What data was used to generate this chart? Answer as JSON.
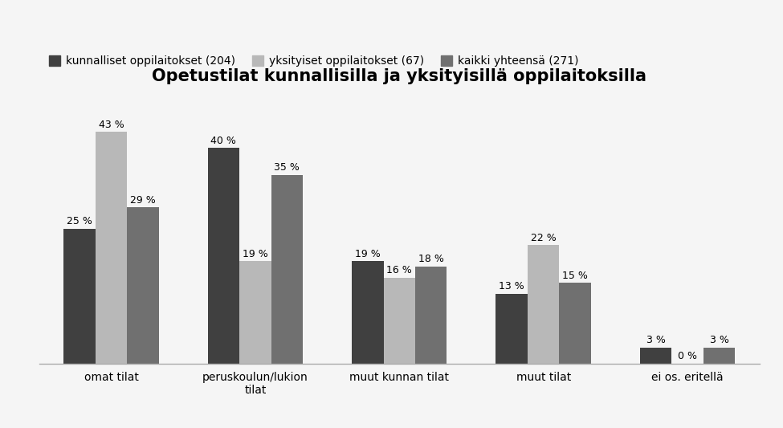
{
  "title": "Opetustilat kunnallisilla ja yksityisillä oppilaitoksilla",
  "categories": [
    "omat tilat",
    "peruskoulun/lukion\ntilat",
    "muut kunnan tilat",
    "muut tilat",
    "ei os. eritellä"
  ],
  "series": [
    {
      "label": "kunnalliset oppilaitokset (204)",
      "color": "#404040",
      "values": [
        25,
        40,
        19,
        13,
        3
      ]
    },
    {
      "label": "yksityiset oppilaitokset (67)",
      "color": "#b8b8b8",
      "values": [
        43,
        19,
        16,
        22,
        0
      ]
    },
    {
      "label": "kaikki yhteensä (271)",
      "color": "#707070",
      "values": [
        29,
        35,
        18,
        15,
        3
      ]
    }
  ],
  "ylim": [
    0,
    50
  ],
  "bar_width": 0.22,
  "background_color": "#f5f5f5",
  "title_fontsize": 15,
  "label_fontsize": 9,
  "tick_fontsize": 10,
  "legend_fontsize": 10
}
